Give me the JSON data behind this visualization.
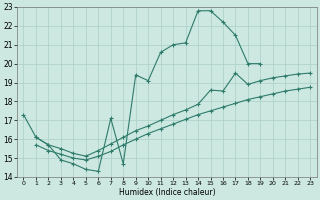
{
  "xlabel": "Humidex (Indice chaleur)",
  "xlim": [
    -0.5,
    23.5
  ],
  "ylim": [
    14,
    23
  ],
  "yticks": [
    14,
    15,
    16,
    17,
    18,
    19,
    20,
    21,
    22,
    23
  ],
  "xticks": [
    0,
    1,
    2,
    3,
    4,
    5,
    6,
    7,
    8,
    9,
    10,
    11,
    12,
    13,
    14,
    15,
    16,
    17,
    18,
    19,
    20,
    21,
    22,
    23
  ],
  "bg_color": "#cce8e0",
  "line_color": "#2e7b6b",
  "grid_color": "#aacfc8",
  "curve1_x": [
    0,
    1,
    2,
    3,
    4,
    5,
    6,
    7,
    8,
    9,
    10,
    11,
    12,
    13,
    14,
    15,
    16,
    17,
    18,
    19
  ],
  "curve1_y": [
    17.3,
    16.1,
    15.7,
    14.9,
    14.7,
    14.4,
    14.3,
    17.1,
    14.7,
    19.4,
    19.1,
    20.6,
    21.0,
    21.1,
    22.8,
    22.8,
    22.2,
    21.5,
    20.0,
    20.0
  ],
  "line2_x": [
    1,
    2,
    3,
    4,
    5,
    6,
    7,
    8,
    9,
    10,
    11,
    12,
    13,
    14,
    15,
    16,
    17,
    18,
    19,
    20,
    21,
    22,
    23
  ],
  "line2_y": [
    16.1,
    15.7,
    15.5,
    15.25,
    15.1,
    15.4,
    15.75,
    16.1,
    16.45,
    16.7,
    17.0,
    17.3,
    17.55,
    17.85,
    18.6,
    18.55,
    19.5,
    18.9,
    19.1,
    19.25,
    19.35,
    19.45,
    19.5
  ],
  "line3_x": [
    1,
    2,
    3,
    4,
    5,
    6,
    7,
    8,
    9,
    10,
    11,
    12,
    13,
    14,
    15,
    16,
    17,
    18,
    19,
    20,
    21,
    22,
    23
  ],
  "line3_y": [
    15.7,
    15.4,
    15.2,
    15.0,
    14.9,
    15.1,
    15.35,
    15.7,
    16.0,
    16.3,
    16.55,
    16.8,
    17.05,
    17.3,
    17.5,
    17.7,
    17.9,
    18.1,
    18.25,
    18.4,
    18.55,
    18.65,
    18.75
  ]
}
